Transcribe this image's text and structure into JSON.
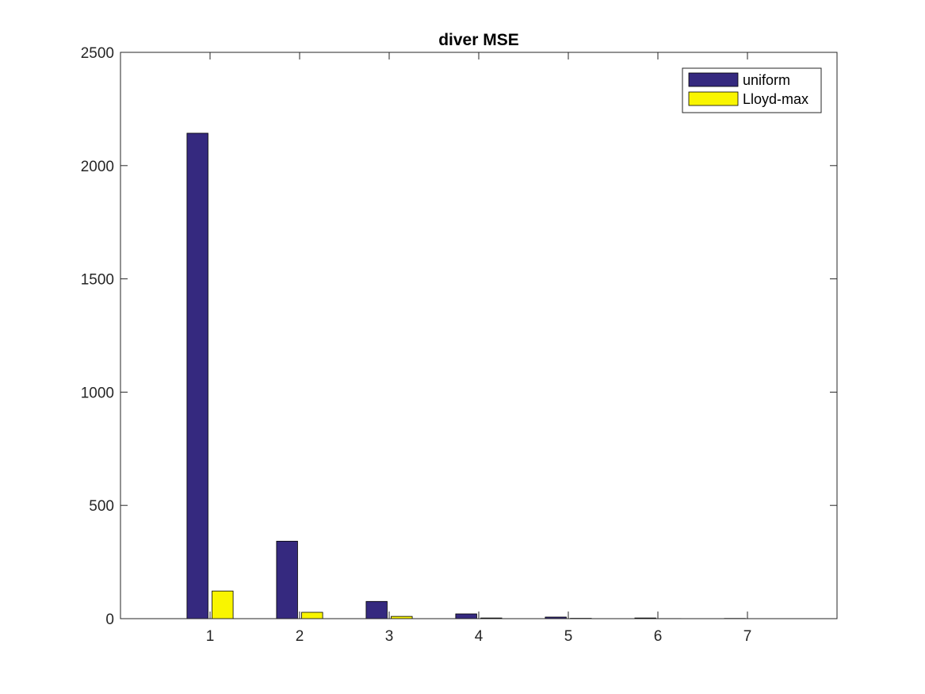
{
  "chart_data": {
    "type": "bar",
    "title": "diver MSE",
    "xlabel": "",
    "ylabel": "",
    "categories": [
      "1",
      "2",
      "3",
      "4",
      "5",
      "6",
      "7"
    ],
    "series": [
      {
        "name": "uniform",
        "color": "#35297f",
        "values": [
          2143,
          342,
          76,
          21,
          7,
          3,
          1
        ]
      },
      {
        "name": "Lloyd-max",
        "color": "#f9f500",
        "values": [
          122,
          28,
          10,
          3,
          1.5,
          0.5,
          0.2
        ]
      }
    ],
    "xlim": [
      0,
      8
    ],
    "ylim": [
      0,
      2500
    ],
    "yticks": [
      0,
      500,
      1000,
      1500,
      2000,
      2500
    ],
    "grid": false,
    "legend": "top-right"
  }
}
